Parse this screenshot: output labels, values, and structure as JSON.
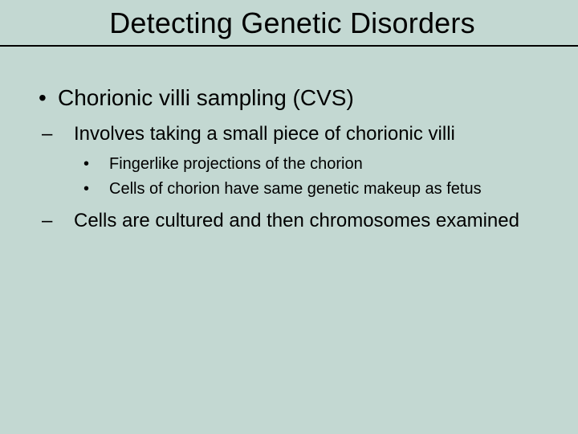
{
  "slide": {
    "background_color": "#c3d8d2",
    "title_underline_color": "#000000",
    "text_color": "#000000",
    "title": "Detecting Genetic Disorders",
    "title_fontsize": 36,
    "content": {
      "lvl1": {
        "bullet": "•",
        "text": "Chorionic villi sampling (CVS)",
        "fontsize": 28
      },
      "lvl2_a": {
        "dash": "–",
        "text": "Involves taking a small piece of chorionic villi",
        "fontsize": 24
      },
      "lvl3_a": {
        "dot": "•",
        "text": "Fingerlike projections of the chorion",
        "fontsize": 20
      },
      "lvl3_b": {
        "dot": "•",
        "text": "Cells of chorion have same genetic makeup as fetus",
        "fontsize": 20
      },
      "lvl2_b": {
        "dash": "–",
        "text": "Cells are cultured and then chromosomes examined",
        "fontsize": 24
      }
    }
  }
}
